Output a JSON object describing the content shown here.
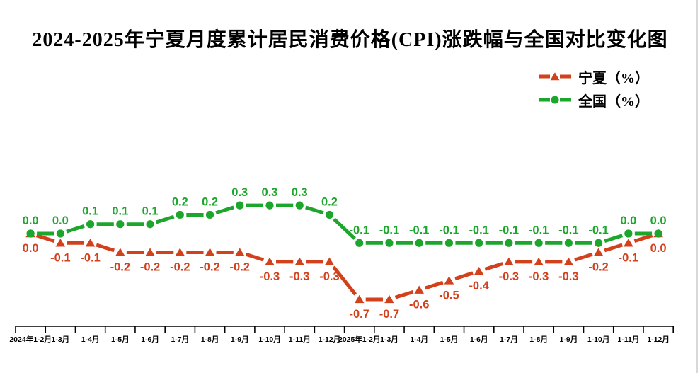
{
  "title": "2024-2025年宁夏月度累计居民消费价格(CPI)涨跌幅与全国对比变化图",
  "legend": {
    "position": "top-right",
    "items": [
      {
        "key": "ningxia",
        "label": "宁夏（%）",
        "color": "#d2411c",
        "marker": "triangle"
      },
      {
        "key": "national",
        "label": "全国（%）",
        "color": "#1ca62c",
        "marker": "circle"
      }
    ]
  },
  "colors": {
    "ningxia": "#d2411c",
    "national": "#1ca62c",
    "axis": "#000000",
    "background": "#ffffff",
    "edge_line": "#d9d9d9"
  },
  "chart_data": {
    "type": "line",
    "title": "2024-2025年宁夏月度累计居民消费价格(CPI)涨跌幅与全国对比变化图",
    "categories": [
      "2024年1-2月",
      "1-3月",
      "1-4月",
      "1-5月",
      "1-6月",
      "1-7月",
      "1-8月",
      "1-9月",
      "1-10月",
      "1-11月",
      "1-12月",
      "2025年1-2月",
      "1-3月",
      "1-4月",
      "1-5月",
      "1-6月",
      "1-7月",
      "1-8月",
      "1-9月",
      "1-10月",
      "1-11月",
      "1-12月"
    ],
    "series": [
      {
        "name": "宁夏（%）",
        "key": "ningxia",
        "color": "#d2411c",
        "marker": "triangle",
        "line_style": "dashed",
        "data_label_position": "below",
        "values": [
          0.0,
          -0.1,
          -0.1,
          -0.2,
          -0.2,
          -0.2,
          -0.2,
          -0.2,
          -0.3,
          -0.3,
          -0.3,
          -0.7,
          -0.7,
          -0.6,
          -0.5,
          -0.4,
          -0.3,
          -0.3,
          -0.3,
          -0.2,
          -0.1,
          0.0
        ]
      },
      {
        "name": "全国（%）",
        "key": "national",
        "color": "#1ca62c",
        "marker": "circle",
        "line_style": "dashed",
        "data_label_position": "above",
        "values": [
          0.0,
          0.0,
          0.1,
          0.1,
          0.1,
          0.2,
          0.2,
          0.3,
          0.3,
          0.3,
          0.2,
          -0.1,
          -0.1,
          -0.1,
          -0.1,
          -0.1,
          -0.1,
          -0.1,
          -0.1,
          -0.1,
          0.0,
          0.0
        ]
      }
    ],
    "xlabel": "",
    "ylabel": "",
    "ylim": [
      -1.0,
      0.5
    ],
    "grid": false,
    "data_labels": true,
    "legend_position": "top-right"
  }
}
